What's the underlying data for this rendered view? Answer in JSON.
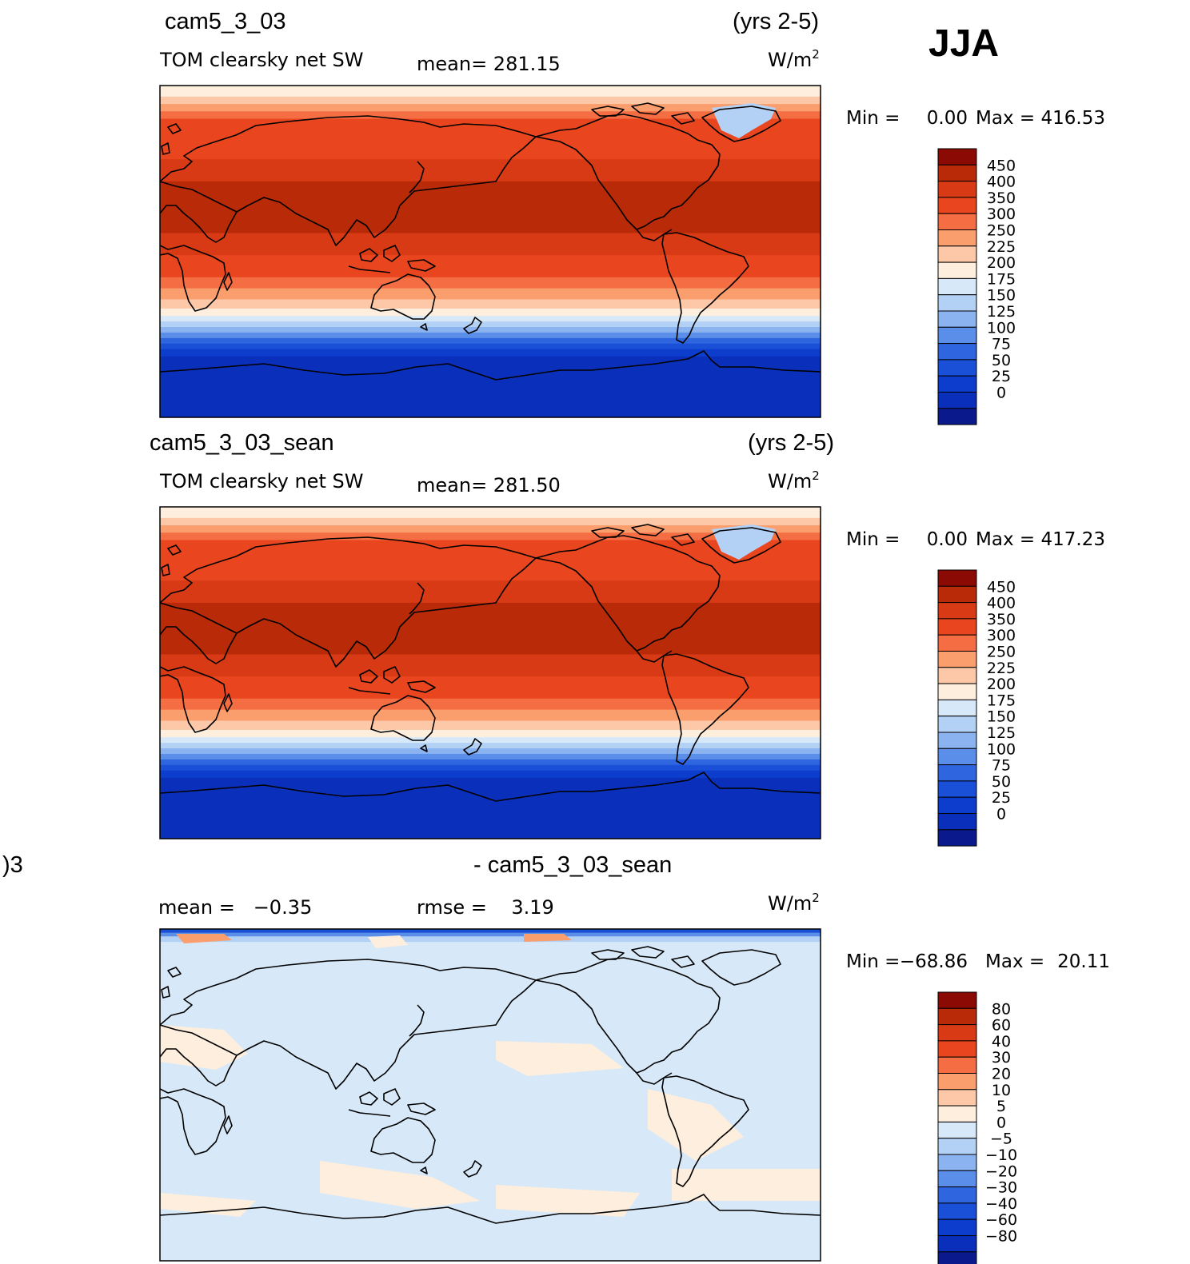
{
  "season": "JJA",
  "bands": {
    "top": [
      {
        "color": "#feeedd",
        "lat0": 90,
        "lat1": 84
      },
      {
        "color": "#fdc8a8",
        "lat0": 84,
        "lat1": 80
      },
      {
        "color": "#fb9e6e",
        "lat0": 80,
        "lat1": 76
      },
      {
        "color": "#f46d43",
        "lat0": 76,
        "lat1": 72
      },
      {
        "color": "#e9461f",
        "lat0": 72,
        "lat1": 50
      },
      {
        "color": "#d73a14",
        "lat0": 50,
        "lat1": 38
      },
      {
        "color": "#b82a08",
        "lat0": 38,
        "lat1": 10
      },
      {
        "color": "#d73a14",
        "lat0": 10,
        "lat1": -2
      },
      {
        "color": "#e9461f",
        "lat0": -2,
        "lat1": -14
      },
      {
        "color": "#f46d43",
        "lat0": -14,
        "lat1": -20
      },
      {
        "color": "#fb9e6e",
        "lat0": -20,
        "lat1": -26
      },
      {
        "color": "#fdc8a8",
        "lat0": -26,
        "lat1": -31
      },
      {
        "color": "#feeedd",
        "lat0": -31,
        "lat1": -35
      },
      {
        "color": "#d7e9f8",
        "lat0": -35,
        "lat1": -38
      },
      {
        "color": "#b3d1f5",
        "lat0": -38,
        "lat1": -41
      },
      {
        "color": "#8ab3f0",
        "lat0": -41,
        "lat1": -44
      },
      {
        "color": "#5b8ee8",
        "lat0": -44,
        "lat1": -47
      },
      {
        "color": "#2f66e0",
        "lat0": -47,
        "lat1": -50
      },
      {
        "color": "#1a4fd8",
        "lat0": -50,
        "lat1": -53
      },
      {
        "color": "#0d3dcc",
        "lat0": -53,
        "lat1": -57
      },
      {
        "color": "#0a2fba",
        "lat0": -57,
        "lat1": -90
      }
    ],
    "diff": [
      {
        "color": "#1a4fd8",
        "lat0": 90,
        "lat1": 88
      },
      {
        "color": "#5b8ee8",
        "lat0": 88,
        "lat1": 86
      },
      {
        "color": "#b3d1f5",
        "lat0": 86,
        "lat1": 83
      },
      {
        "color": "#d7e9f8",
        "lat0": 83,
        "lat1": -90
      }
    ]
  },
  "panels": [
    {
      "case_name": "cam5_3_03",
      "years": "(yrs 2-5)",
      "variable": "TOM clearsky net SW",
      "mean_text": "mean= 281.15",
      "units_main": "W/m",
      "units_sup": "2",
      "min_label": "Min =",
      "min_value": "0.00",
      "max_label": "Max =",
      "max_value": "416.53",
      "colorbar": {
        "colors": [
          "#0a1a8c",
          "#0a2fba",
          "#0d3dcc",
          "#1a4fd8",
          "#2f66e0",
          "#5b8ee8",
          "#8ab3f0",
          "#b3d1f5",
          "#d7e9f8",
          "#feeedd",
          "#fdc8a8",
          "#fb9e6e",
          "#f46d43",
          "#e9461f",
          "#d73a14",
          "#b82a08",
          "#8b0a04"
        ],
        "labels": [
          "0",
          "25",
          "50",
          "75",
          "100",
          "125",
          "150",
          "175",
          "200",
          "225",
          "250",
          "300",
          "350",
          "400",
          "450"
        ]
      }
    },
    {
      "case_name": "cam5_3_03_sean",
      "years": "(yrs 2-5)",
      "variable": "TOM clearsky net SW",
      "mean_text": "mean= 281.50",
      "units_main": "W/m",
      "units_sup": "2",
      "min_label": "Min =",
      "min_value": "0.00",
      "max_label": "Max =",
      "max_value": "417.23",
      "colorbar": {
        "colors": [
          "#0a1a8c",
          "#0a2fba",
          "#0d3dcc",
          "#1a4fd8",
          "#2f66e0",
          "#5b8ee8",
          "#8ab3f0",
          "#b3d1f5",
          "#d7e9f8",
          "#feeedd",
          "#fdc8a8",
          "#fb9e6e",
          "#f46d43",
          "#e9461f",
          "#d73a14",
          "#b82a08",
          "#8b0a04"
        ],
        "labels": [
          "0",
          "25",
          "50",
          "75",
          "100",
          "125",
          "150",
          "175",
          "200",
          "225",
          "250",
          "300",
          "350",
          "400",
          "450"
        ]
      }
    },
    {
      "left_title": ")3",
      "center_title": "- cam5_3_03_sean",
      "mean_text": "mean =   −0.35",
      "rmse_text": "rmse =    3.19",
      "units_main": "W/m",
      "units_sup": "2",
      "min_label": "Min =",
      "min_value": "−68.86",
      "max_label": "Max =",
      "max_value": "20.11",
      "colorbar": {
        "colors": [
          "#0a1a8c",
          "#0a2fba",
          "#0d3dcc",
          "#1a4fd8",
          "#2f66e0",
          "#5b8ee8",
          "#8ab3f0",
          "#b3d1f5",
          "#d7e9f8",
          "#feeedd",
          "#fdc8a8",
          "#fb9e6e",
          "#f46d43",
          "#e9461f",
          "#d73a14",
          "#b82a08",
          "#8b0a04"
        ],
        "labels": [
          "−80",
          "−60",
          "−40",
          "−30",
          "−20",
          "−10",
          "−5",
          "0",
          "5",
          "10",
          "20",
          "30",
          "40",
          "60",
          "80"
        ]
      }
    }
  ]
}
